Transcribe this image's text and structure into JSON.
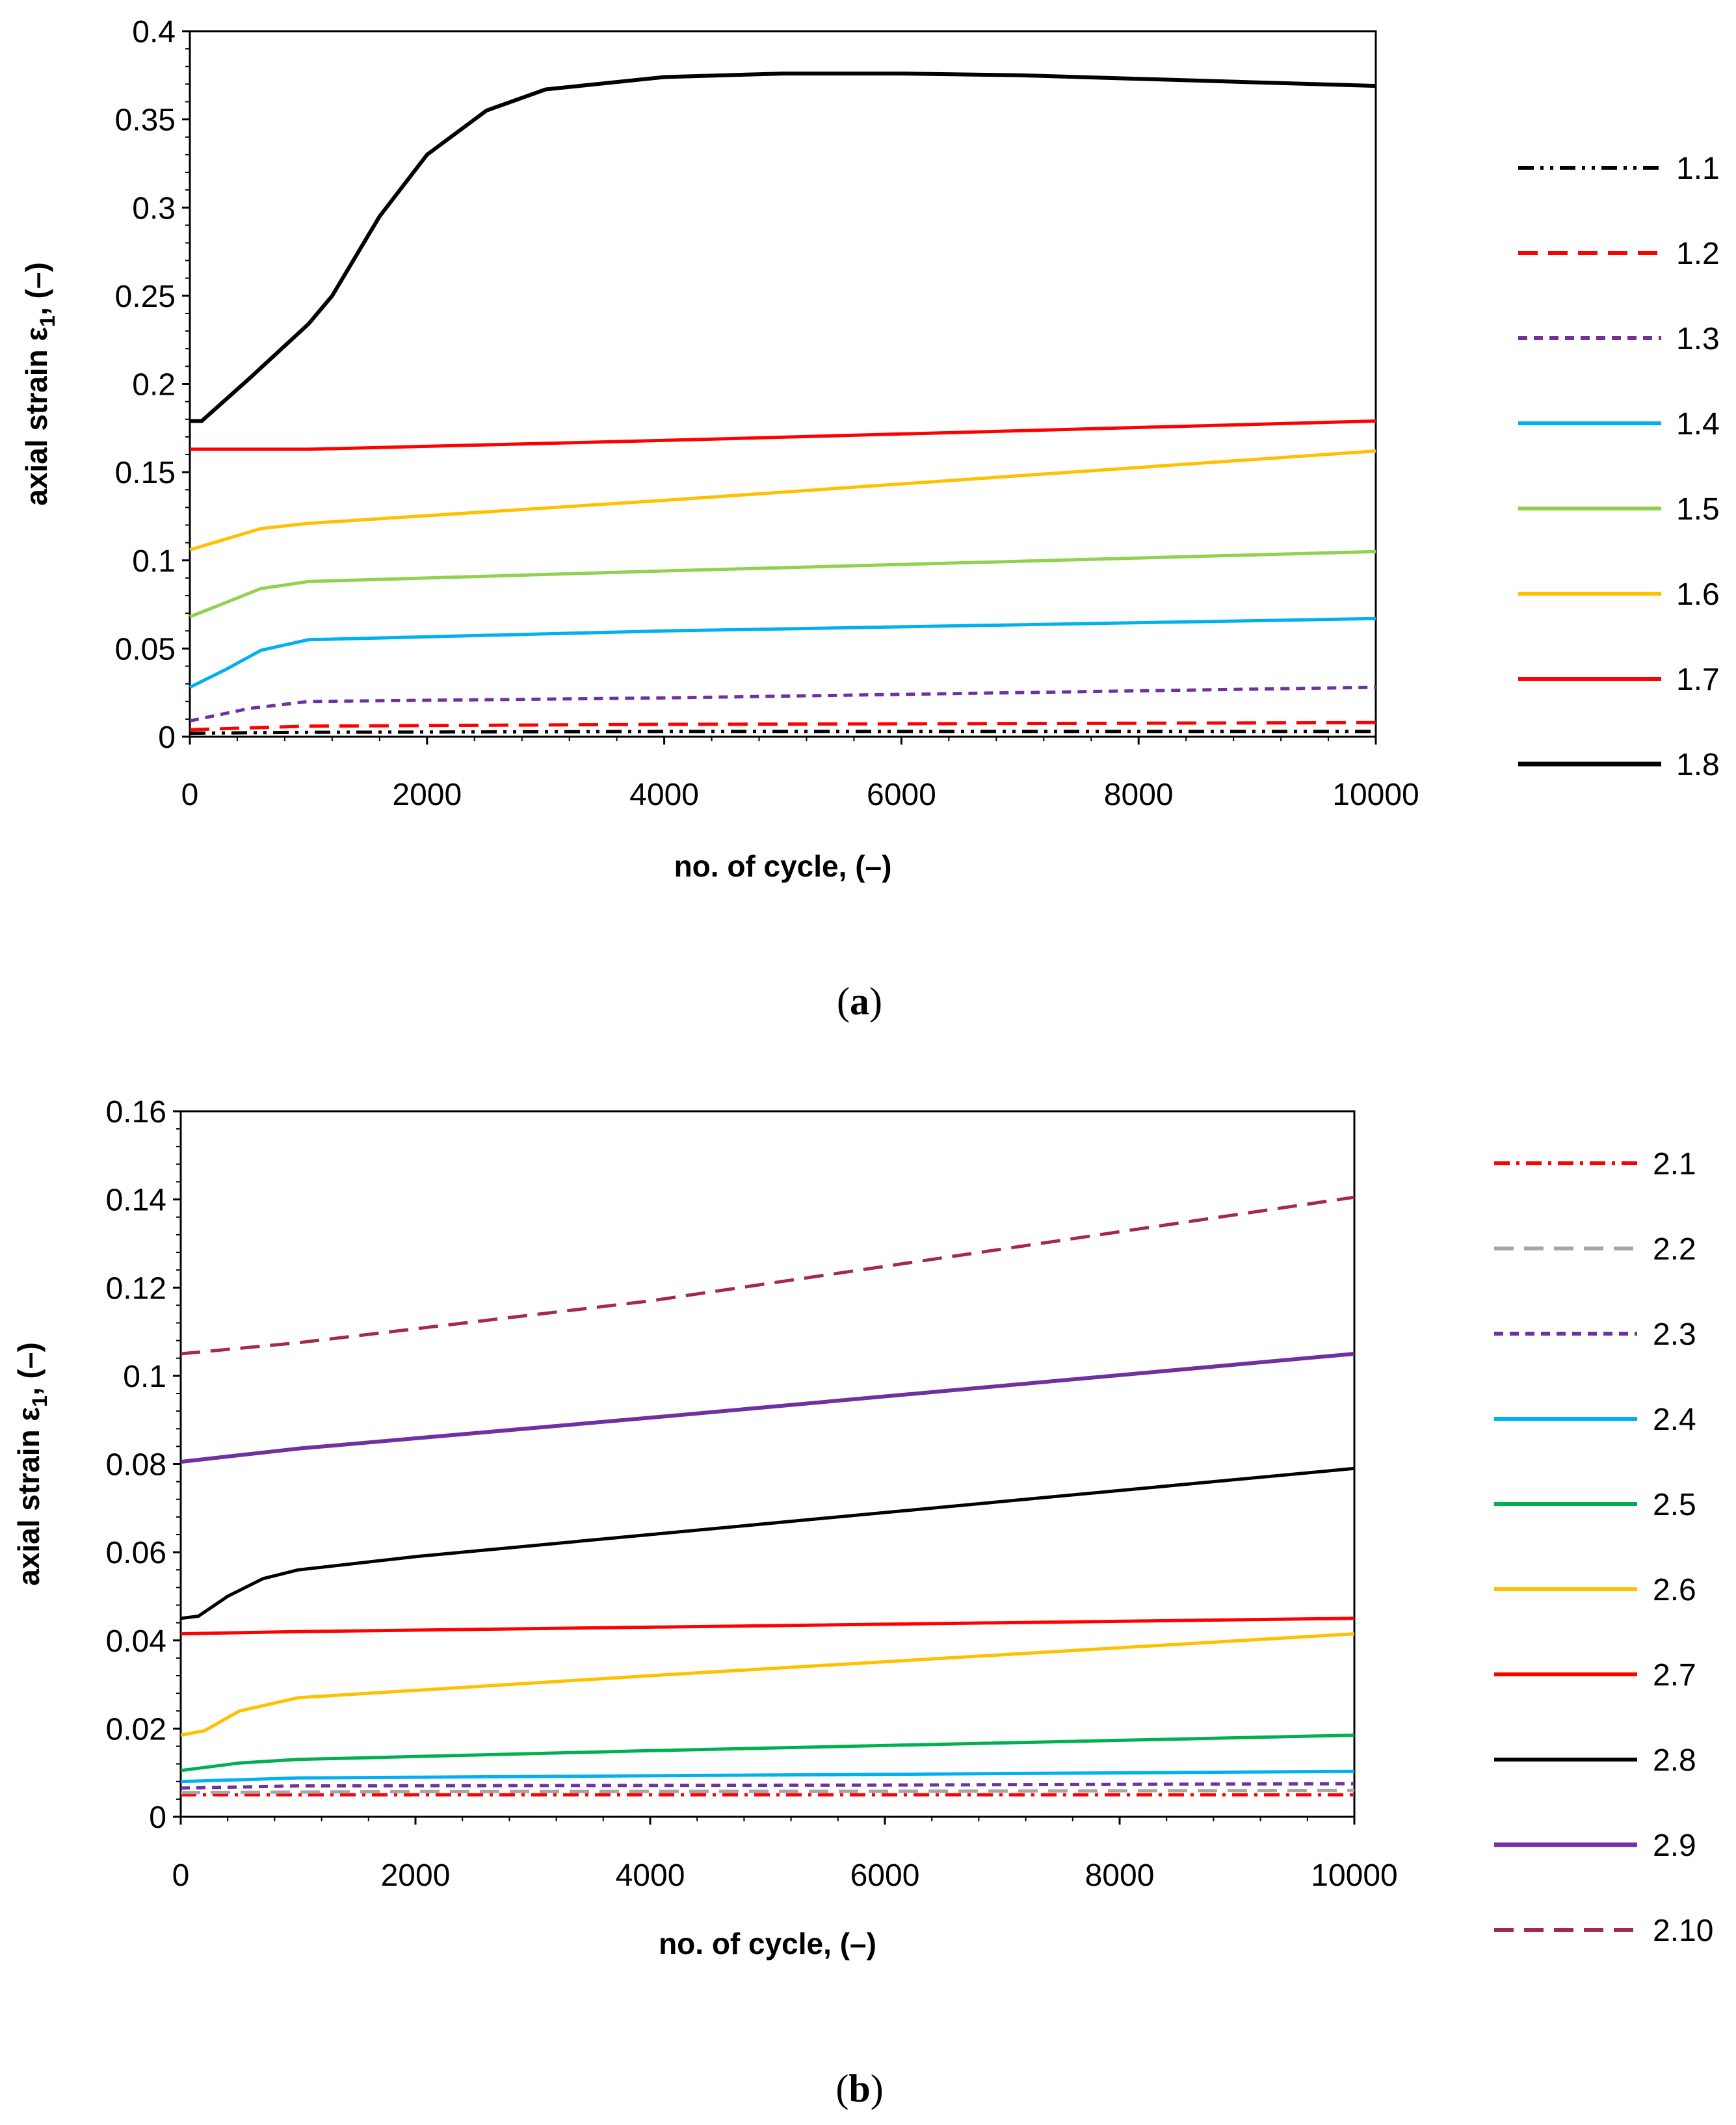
{
  "figure": {
    "panel_labels": [
      "a",
      "b"
    ]
  },
  "chart_data": [
    {
      "type": "line",
      "panel": "a",
      "title": "",
      "xlabel": "no. of cycle, (–)",
      "ylabel_prefix": "axial strain ε",
      "ylabel_sub": "1",
      "ylabel_suffix": ", (–)",
      "xlim": [
        0,
        10000
      ],
      "ylim": [
        0,
        0.4
      ],
      "xticks": [
        0,
        2000,
        4000,
        6000,
        8000,
        10000
      ],
      "xtick_labels": [
        "0",
        "2000",
        "4000",
        "6000",
        "8000",
        "10000"
      ],
      "yticks": [
        0,
        0.05,
        0.1,
        0.15,
        0.2,
        0.25,
        0.3,
        0.35,
        0.4
      ],
      "ytick_labels": [
        "0",
        "0.05",
        "0.1",
        "0.15",
        "0.2",
        "0.25",
        "0.3",
        "0.35",
        "0.4"
      ],
      "grid": false,
      "legend_position": "right",
      "series": [
        {
          "name": "1.1",
          "color": "#000000",
          "dash": "dashdotdot",
          "width": 5,
          "points": [
            [
              0,
              0.002
            ],
            [
              1000,
              0.0025
            ],
            [
              4000,
              0.003
            ],
            [
              10000,
              0.003
            ]
          ]
        },
        {
          "name": "1.2",
          "color": "#ff0000",
          "dash": "dash",
          "width": 5,
          "points": [
            [
              0,
              0.004
            ],
            [
              1000,
              0.006
            ],
            [
              4000,
              0.007
            ],
            [
              10000,
              0.008
            ]
          ]
        },
        {
          "name": "1.3",
          "color": "#7030a0",
          "dash": "shortdash",
          "width": 5,
          "points": [
            [
              0,
              0.009
            ],
            [
              500,
              0.016
            ],
            [
              1000,
              0.02
            ],
            [
              4000,
              0.022
            ],
            [
              10000,
              0.028
            ]
          ]
        },
        {
          "name": "1.4",
          "color": "#00b0f0",
          "dash": "solid",
          "width": 5,
          "points": [
            [
              0,
              0.028
            ],
            [
              300,
              0.038
            ],
            [
              600,
              0.049
            ],
            [
              1000,
              0.055
            ],
            [
              4000,
              0.06
            ],
            [
              10000,
              0.067
            ]
          ]
        },
        {
          "name": "1.5",
          "color": "#92d050",
          "dash": "solid",
          "width": 5,
          "points": [
            [
              0,
              0.068
            ],
            [
              300,
              0.076
            ],
            [
              600,
              0.084
            ],
            [
              1000,
              0.088
            ],
            [
              4000,
              0.094
            ],
            [
              10000,
              0.105
            ]
          ]
        },
        {
          "name": "1.6",
          "color": "#ffc000",
          "dash": "solid",
          "width": 5,
          "points": [
            [
              0,
              0.106
            ],
            [
              300,
              0.112
            ],
            [
              600,
              0.118
            ],
            [
              1000,
              0.121
            ],
            [
              4000,
              0.134
            ],
            [
              10000,
              0.162
            ]
          ]
        },
        {
          "name": "1.7",
          "color": "#ff0000",
          "dash": "solid",
          "width": 5,
          "points": [
            [
              0,
              0.163
            ],
            [
              1000,
              0.163
            ],
            [
              4000,
              0.168
            ],
            [
              10000,
              0.179
            ]
          ]
        },
        {
          "name": "1.8",
          "color": "#000000",
          "dash": "solid",
          "width": 6,
          "points": [
            [
              0,
              0.179
            ],
            [
              100,
              0.179
            ],
            [
              500,
              0.203
            ],
            [
              1000,
              0.234
            ],
            [
              1200,
              0.25
            ],
            [
              1600,
              0.295
            ],
            [
              2000,
              0.33
            ],
            [
              2500,
              0.355
            ],
            [
              3000,
              0.367
            ],
            [
              4000,
              0.374
            ],
            [
              5000,
              0.376
            ],
            [
              6000,
              0.376
            ],
            [
              7000,
              0.375
            ],
            [
              8000,
              0.373
            ],
            [
              9000,
              0.371
            ],
            [
              10000,
              0.369
            ]
          ]
        }
      ]
    },
    {
      "type": "line",
      "panel": "b",
      "title": "",
      "xlabel": "no. of cycle, (–)",
      "ylabel_prefix": "axial strain ε",
      "ylabel_sub": "1",
      "ylabel_suffix": ", (–)",
      "xlim": [
        0,
        10000
      ],
      "ylim": [
        0,
        0.16
      ],
      "xticks": [
        0,
        2000,
        4000,
        6000,
        8000,
        10000
      ],
      "xtick_labels": [
        "0",
        "2000",
        "4000",
        "6000",
        "8000",
        "10000"
      ],
      "yticks": [
        0,
        0.02,
        0.04,
        0.06,
        0.08,
        0.1,
        0.12,
        0.14,
        0.16
      ],
      "ytick_labels": [
        "0",
        "0.02",
        "0.04",
        "0.06",
        "0.08",
        "0.1",
        "0.12",
        "0.14",
        "0.16"
      ],
      "grid": false,
      "legend_position": "right",
      "series": [
        {
          "name": "2.1",
          "color": "#ff0000",
          "dash": "dashdot",
          "width": 5,
          "points": [
            [
              0,
              0.005
            ],
            [
              2000,
              0.005
            ],
            [
              6000,
              0.005
            ],
            [
              10000,
              0.005
            ]
          ]
        },
        {
          "name": "2.2",
          "color": "#a6a6a6",
          "dash": "dash",
          "width": 5,
          "points": [
            [
              0,
              0.0055
            ],
            [
              2000,
              0.0057
            ],
            [
              6000,
              0.0058
            ],
            [
              10000,
              0.006
            ]
          ]
        },
        {
          "name": "2.3",
          "color": "#7030a0",
          "dash": "shortdash",
          "width": 5,
          "points": [
            [
              0,
              0.0065
            ],
            [
              1000,
              0.007
            ],
            [
              6000,
              0.0072
            ],
            [
              10000,
              0.0075
            ]
          ]
        },
        {
          "name": "2.4",
          "color": "#00b0f0",
          "dash": "solid",
          "width": 5,
          "points": [
            [
              0,
              0.008
            ],
            [
              1000,
              0.0088
            ],
            [
              4000,
              0.0093
            ],
            [
              10000,
              0.0103
            ]
          ]
        },
        {
          "name": "2.5",
          "color": "#00b050",
          "dash": "solid",
          "width": 5,
          "points": [
            [
              0,
              0.0105
            ],
            [
              500,
              0.0122
            ],
            [
              1000,
              0.013
            ],
            [
              4000,
              0.015
            ],
            [
              10000,
              0.0185
            ]
          ]
        },
        {
          "name": "2.6",
          "color": "#ffc000",
          "dash": "solid",
          "width": 5,
          "points": [
            [
              0,
              0.0185
            ],
            [
              200,
              0.0195
            ],
            [
              500,
              0.024
            ],
            [
              1000,
              0.027
            ],
            [
              4000,
              0.032
            ],
            [
              10000,
              0.0415
            ]
          ]
        },
        {
          "name": "2.7",
          "color": "#ff0000",
          "dash": "solid",
          "width": 5,
          "points": [
            [
              0,
              0.0415
            ],
            [
              1000,
              0.042
            ],
            [
              4000,
              0.043
            ],
            [
              10000,
              0.045
            ]
          ]
        },
        {
          "name": "2.8",
          "color": "#000000",
          "dash": "solid",
          "width": 5,
          "points": [
            [
              0,
              0.045
            ],
            [
              150,
              0.0455
            ],
            [
              400,
              0.05
            ],
            [
              700,
              0.054
            ],
            [
              1000,
              0.056
            ],
            [
              2000,
              0.059
            ],
            [
              4000,
              0.064
            ],
            [
              10000,
              0.079
            ]
          ]
        },
        {
          "name": "2.9",
          "color": "#7030a0",
          "dash": "solid",
          "width": 6,
          "points": [
            [
              0,
              0.0805
            ],
            [
              500,
              0.082
            ],
            [
              1000,
              0.0835
            ],
            [
              4000,
              0.0905
            ],
            [
              10000,
              0.105
            ]
          ]
        },
        {
          "name": "2.10",
          "color": "#a52a4a",
          "dash": "dash",
          "width": 5,
          "points": [
            [
              0,
              0.105
            ],
            [
              1000,
              0.1075
            ],
            [
              4000,
              0.117
            ],
            [
              10000,
              0.1405
            ]
          ]
        }
      ]
    }
  ]
}
